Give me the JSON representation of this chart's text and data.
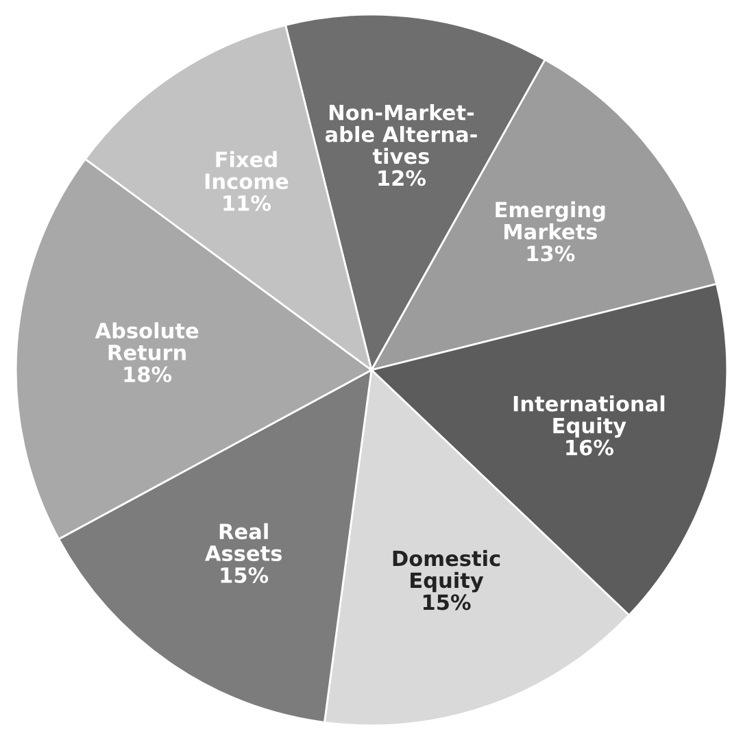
{
  "chart_data": {
    "type": "pie",
    "categories": [
      "Non-Market-\nable Alterna-\ntives",
      "Emerging\nMarkets",
      "International\nEquity",
      "Domestic\nEquity",
      "Real\nAssets",
      "Absolute\nReturn",
      "Fixed\nIncome"
    ],
    "values": [
      12,
      13,
      16,
      15,
      15,
      18,
      11
    ],
    "value_labels": [
      "12%",
      "13%",
      "16%",
      "15%",
      "15%",
      "18%",
      "11%"
    ],
    "colors": [
      "#6e6e6e",
      "#9c9c9c",
      "#5c5c5c",
      "#d9d9d9",
      "#7c7c7c",
      "#a8a8a8",
      "#c2c2c2"
    ]
  }
}
